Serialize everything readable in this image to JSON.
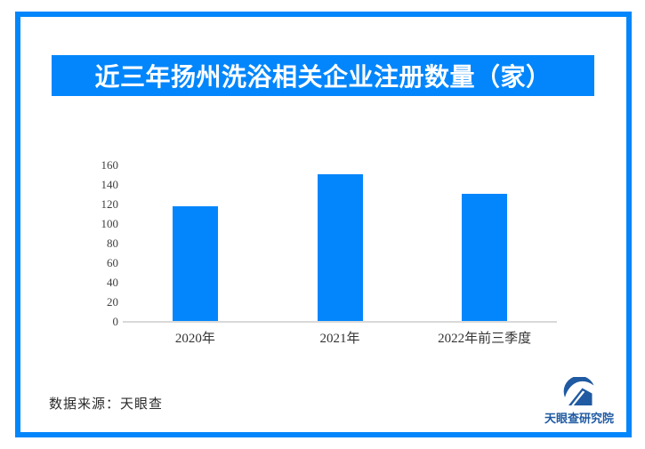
{
  "colors": {
    "accent": "#0386fb",
    "logo_navy": "#1f5aa2",
    "axis_line": "#d9d9d9"
  },
  "header": {
    "title": "近三年扬州洗浴相关企业注册数量（家）"
  },
  "chart_data": {
    "type": "bar",
    "title": "近三年扬州洗浴相关企业注册数量（家）",
    "categories": [
      "2020年",
      "2021年",
      "2022年前三季度"
    ],
    "values": [
      118,
      151,
      131
    ],
    "xlabel": "",
    "ylabel": "",
    "ylim": [
      0,
      160
    ],
    "yticks": [
      0,
      20,
      40,
      60,
      80,
      100,
      120,
      140,
      160
    ],
    "bar_color": "#0386fb",
    "grid": false,
    "legend": null
  },
  "footer": {
    "source": "数据来源：天眼查",
    "logo_text": "天眼查研究院"
  }
}
